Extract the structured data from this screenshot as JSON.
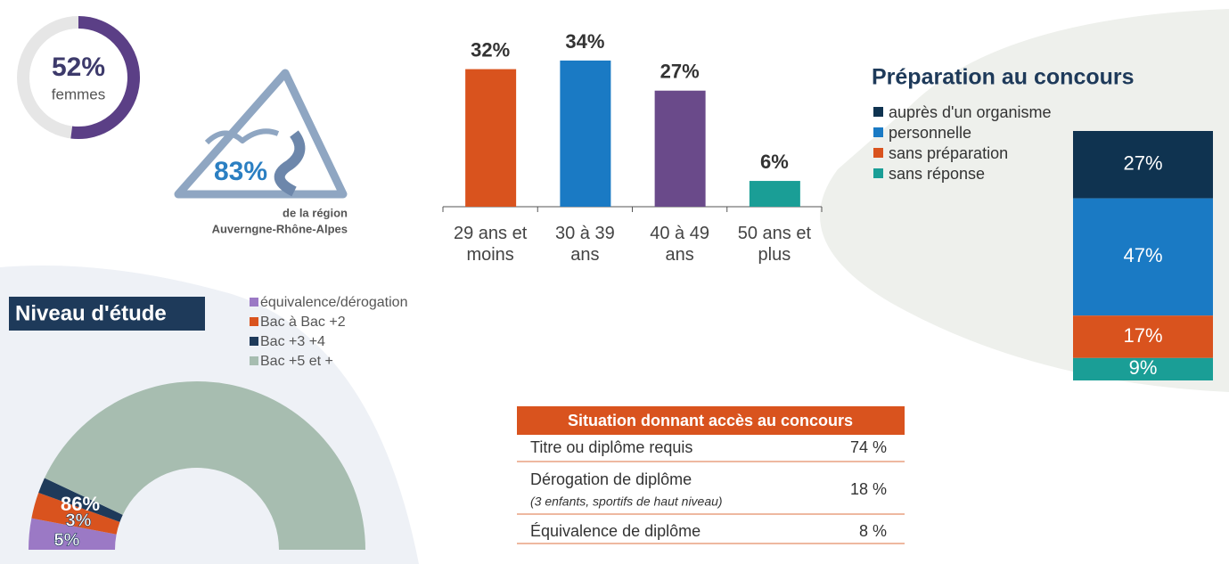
{
  "chart_data": [
    {
      "type": "donut",
      "values": [
        52
      ],
      "value_labels": [
        "52%"
      ],
      "categories": [
        "femmes"
      ],
      "color": "#5b3f86",
      "rest_color": "#e6e6e6"
    },
    {
      "type": "stat",
      "values": [
        83
      ],
      "value_labels": [
        "83%"
      ],
      "caption": [
        "de la région",
        "Auverngne-Rhône-Alpes"
      ],
      "color": "#2b7fc2"
    },
    {
      "type": "bar",
      "categories": [
        "29 ans et moins",
        "30 à 39 ans",
        "40 à 49 ans",
        "50 ans et plus"
      ],
      "values": [
        32,
        34,
        27,
        6
      ],
      "value_labels": [
        "32%",
        "34%",
        "27%",
        "6%"
      ],
      "colors": [
        "#d9531e",
        "#1a7ac4",
        "#6a4a8a",
        "#1a9e96"
      ],
      "ylim": [
        0,
        40
      ]
    },
    {
      "type": "stacked-bar",
      "title": "Préparation au concours",
      "series": [
        {
          "name": "auprès d'un organisme",
          "color": "#0f3350",
          "values": [
            27
          ],
          "value_labels": [
            "27%"
          ]
        },
        {
          "name": "personnelle",
          "color": "#1a7ac4",
          "values": [
            47
          ],
          "value_labels": [
            "47%"
          ]
        },
        {
          "name": "sans préparation",
          "color": "#d9531e",
          "values": [
            17
          ],
          "value_labels": [
            "17%"
          ]
        },
        {
          "name": "sans réponse",
          "color": "#1a9e96",
          "values": [
            9
          ],
          "value_labels": [
            "9%"
          ]
        }
      ],
      "ylim": [
        0,
        100
      ]
    },
    {
      "type": "half-donut",
      "title": "Niveau d'étude",
      "series": [
        {
          "name": "équivalence/dérogation",
          "color": "#9b79c5",
          "values": [
            6
          ],
          "value_labels": [
            "6%"
          ]
        },
        {
          "name": "Bac à Bac +2",
          "color": "#d9531e",
          "values": [
            5
          ],
          "value_labels": [
            "5%"
          ]
        },
        {
          "name": "Bac +3 +4",
          "color": "#1e3a5a",
          "values": [
            3
          ],
          "value_labels": [
            "3%"
          ]
        },
        {
          "name": "Bac +5 et +",
          "color": "#a7bdb0",
          "values": [
            86
          ],
          "value_labels": [
            "86%"
          ]
        }
      ]
    }
  ],
  "table": {
    "header": "Situation donnant accès au concours",
    "rows": [
      {
        "label": "Titre ou diplôme requis",
        "value": "74 %"
      },
      {
        "label": "Dérogation de diplôme",
        "note": "(3 enfants, sportifs de haut niveau)",
        "value": "18 %"
      },
      {
        "label": "Équivalence de diplôme",
        "value": "8 %"
      }
    ]
  }
}
